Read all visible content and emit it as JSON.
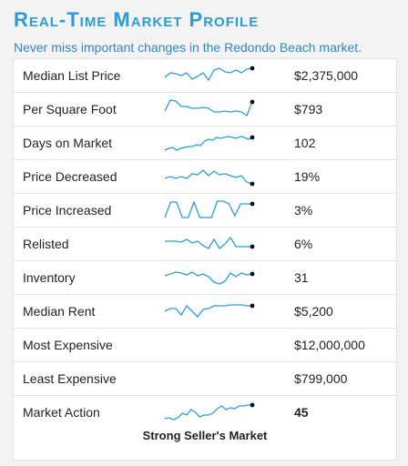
{
  "header": {
    "title": "Real-Time Market Profile",
    "subtitle": "Never miss important changes in the Redondo Beach market."
  },
  "colors": {
    "accent": "#2e9ad6",
    "sparkline": "#2a9fd6",
    "point": "#111111"
  },
  "rows": [
    {
      "label": "Median List Price",
      "value": "$2,375,000",
      "spark": [
        14,
        9,
        10,
        12,
        9,
        16,
        13,
        9,
        17,
        6,
        4,
        8,
        9,
        6,
        9,
        5,
        4
      ]
    },
    {
      "label": "Per Square Foot",
      "value": "$793",
      "spark": [
        14,
        2,
        3,
        9,
        9,
        11,
        11,
        10,
        11,
        15,
        15,
        14,
        15,
        14,
        15,
        19,
        4
      ]
    },
    {
      "label": "Days on Market",
      "value": "102",
      "spark": [
        20,
        18,
        17,
        20,
        18,
        17,
        16,
        16,
        14,
        15,
        10,
        8,
        9,
        6,
        7,
        6,
        5,
        6,
        7,
        5,
        6,
        8,
        6
      ]
    },
    {
      "label": "Price Decreased",
      "value": "19%",
      "spark": [
        14,
        12,
        14,
        12,
        14,
        9,
        10,
        5,
        11,
        6,
        10,
        9,
        11,
        13,
        11,
        18,
        20
      ]
    },
    {
      "label": "Price Increased",
      "value": "3%",
      "spark": [
        20,
        3,
        3,
        20,
        20,
        3,
        20,
        20,
        20,
        2,
        2,
        5,
        18,
        5,
        5,
        5
      ]
    },
    {
      "label": "Relisted",
      "value": "6%",
      "spark": [
        9,
        9,
        9,
        10,
        7,
        11,
        9,
        14,
        17,
        7,
        17,
        12,
        5,
        15,
        15,
        15,
        15
      ]
    },
    {
      "label": "Inventory",
      "value": "31",
      "spark": [
        10,
        8,
        6,
        7,
        9,
        6,
        10,
        8,
        11,
        17,
        19,
        16,
        7,
        11,
        7,
        9,
        8
      ]
    },
    {
      "label": "Median Rent",
      "value": "$5,200",
      "spark": [
        12,
        9,
        9,
        16,
        6,
        12,
        18,
        10,
        9,
        6,
        6,
        6,
        5,
        5,
        5,
        6,
        6
      ]
    },
    {
      "label": "Most Expensive",
      "value": "$12,000,000",
      "spark": []
    },
    {
      "label": "Least Expensive",
      "value": "$799,000",
      "spark": []
    },
    {
      "label": "Market Action",
      "value": "45",
      "bold": true,
      "spark": [
        19,
        18,
        20,
        18,
        13,
        15,
        9,
        12,
        17,
        15,
        15,
        13,
        8,
        5,
        9,
        7,
        8,
        5,
        5,
        4,
        4
      ]
    }
  ],
  "footer": {
    "label": "Strong Seller's Market"
  }
}
